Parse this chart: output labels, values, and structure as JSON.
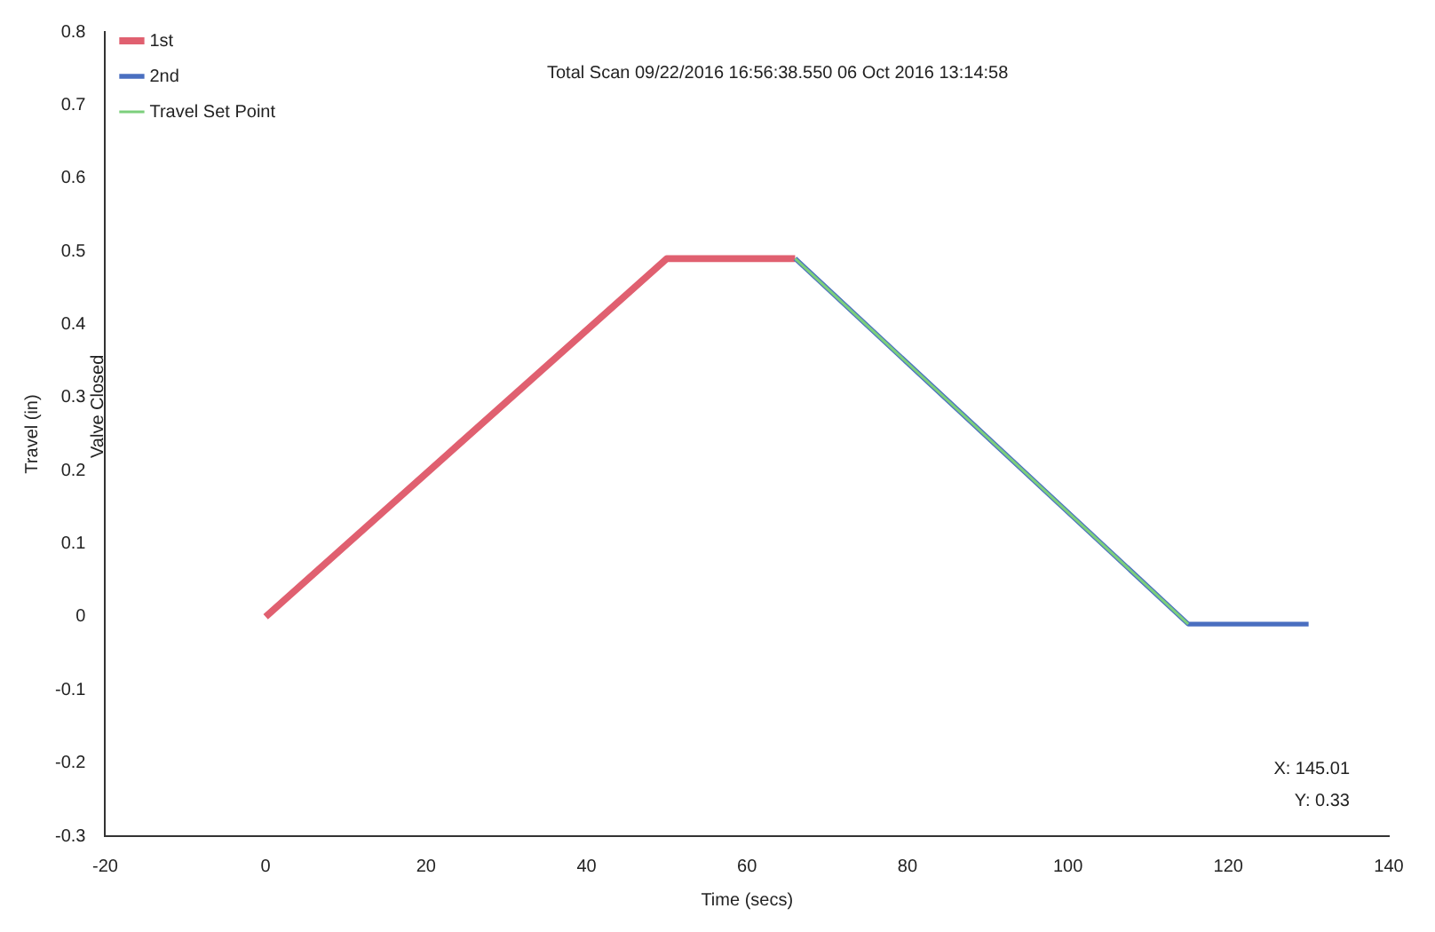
{
  "chart_data": {
    "type": "line",
    "title": "Total Scan 09/22/2016 16:56:38.550 06 Oct 2016 13:14:58",
    "xlabel": "Time (secs)",
    "ylabel": "Travel (in)",
    "annotations": [
      "Valve Closed",
      "X: 145.01",
      "Y: 0.33"
    ],
    "series": [
      {
        "name": "1st",
        "color": "#e06070",
        "x": [
          0,
          50,
          58,
          66
        ],
        "values": [
          0,
          0.49,
          0.49,
          0.49
        ]
      },
      {
        "name": "2nd",
        "color": "#4a6fc0",
        "x": [
          66,
          115,
          130
        ],
        "values": [
          0.49,
          -0.01,
          -0.01
        ]
      },
      {
        "name": "Travel Set Point",
        "color": "#7ccf7c",
        "x": [
          66,
          115
        ],
        "values": [
          0.49,
          -0.01
        ]
      }
    ],
    "xlim": [
      -20,
      140
    ],
    "xticks": [
      -20,
      0,
      20,
      40,
      60,
      80,
      100,
      120,
      140
    ],
    "ylim": [
      -0.3,
      0.8
    ],
    "yticks": [
      -0.3,
      -0.2,
      -0.1,
      0,
      0.1,
      0.2,
      0.3,
      0.4,
      0.5,
      0.6,
      0.7,
      0.8
    ],
    "grid": false,
    "legend": "top left",
    "marker": "none",
    "line_style": "solid"
  }
}
